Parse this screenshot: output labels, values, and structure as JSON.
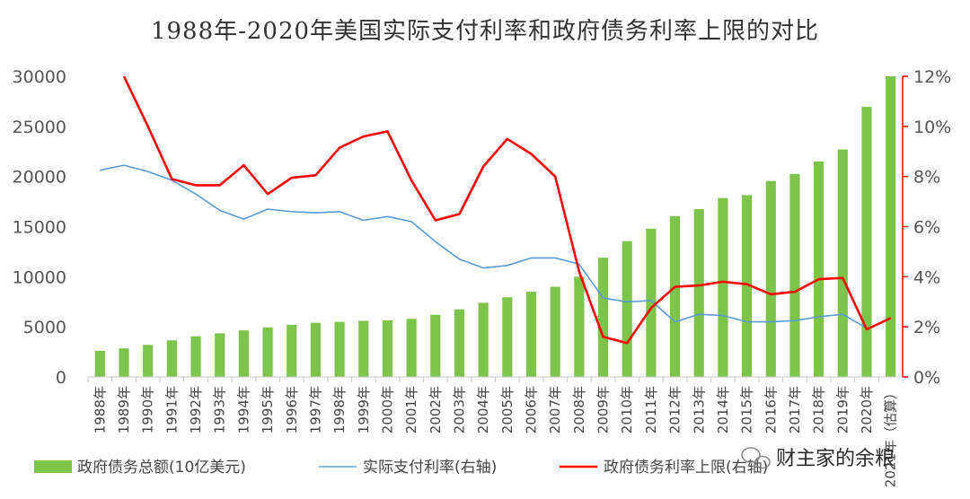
{
  "chart_data": {
    "type": "bar",
    "title": "1988年-2020年美国实际支付利率和政府债务利率上限的对比",
    "categories": [
      "1988年",
      "1989年",
      "1990年",
      "1991年",
      "1992年",
      "1993年",
      "1994年",
      "1995年",
      "1996年",
      "1997年",
      "1998年",
      "1999年",
      "2000年",
      "2001年",
      "2002年",
      "2003年",
      "2004年",
      "2005年",
      "2006年",
      "2007年",
      "2008年",
      "2009年",
      "2010年",
      "2011年",
      "2012年",
      "2013年",
      "2014年",
      "2015年",
      "2016年",
      "2017年",
      "2018年",
      "2019年",
      "2020年",
      "2021年（估算）"
    ],
    "y_left": {
      "ticks": [
        "0",
        "5000",
        "10000",
        "15000",
        "20000",
        "25000",
        "30000"
      ],
      "ylim": [
        0,
        30000
      ]
    },
    "y_right": {
      "ticks": [
        "0%",
        "2%",
        "4%",
        "6%",
        "8%",
        "10%",
        "12%"
      ],
      "ylim": [
        0,
        12
      ]
    },
    "grid": false,
    "legend_position": "bottom",
    "series": [
      {
        "name": "政府债务总额(10亿美元)",
        "type": "bar",
        "axis": "left",
        "color": "#7dc54a",
        "values": [
          2600,
          2850,
          3200,
          3650,
          4050,
          4350,
          4650,
          4950,
          5200,
          5400,
          5500,
          5600,
          5650,
          5800,
          6200,
          6750,
          7400,
          7950,
          8500,
          9000,
          10000,
          11900,
          13550,
          14800,
          16050,
          16750,
          17850,
          18150,
          19550,
          20250,
          21500,
          22700,
          26950,
          30000
        ]
      },
      {
        "name": "实际支付利率(右轴)",
        "type": "line",
        "axis": "right",
        "color": "#5b9bd5",
        "values": [
          8.25,
          8.45,
          8.2,
          7.85,
          7.3,
          6.65,
          6.3,
          6.7,
          6.6,
          6.55,
          6.6,
          6.25,
          6.4,
          6.2,
          5.4,
          4.7,
          4.35,
          4.45,
          4.75,
          4.75,
          4.5,
          3.15,
          3.0,
          3.05,
          2.2,
          2.5,
          2.45,
          2.2,
          2.2,
          2.25,
          2.4,
          2.5,
          1.95,
          null
        ]
      },
      {
        "name": "政府债务利率上限(右轴)",
        "type": "line",
        "axis": "right",
        "color": "#ff0000",
        "values": [
          null,
          12.0,
          10.0,
          7.9,
          7.65,
          7.65,
          8.45,
          7.3,
          7.95,
          8.05,
          9.15,
          9.6,
          9.8,
          7.85,
          6.25,
          6.5,
          8.4,
          9.5,
          8.9,
          8.0,
          4.2,
          1.6,
          1.35,
          2.75,
          3.6,
          3.65,
          3.8,
          3.7,
          3.3,
          3.4,
          3.9,
          3.95,
          1.9,
          2.35
        ]
      }
    ]
  },
  "watermark": {
    "text": "财主家的余粮",
    "icon": "wechat-icon"
  }
}
